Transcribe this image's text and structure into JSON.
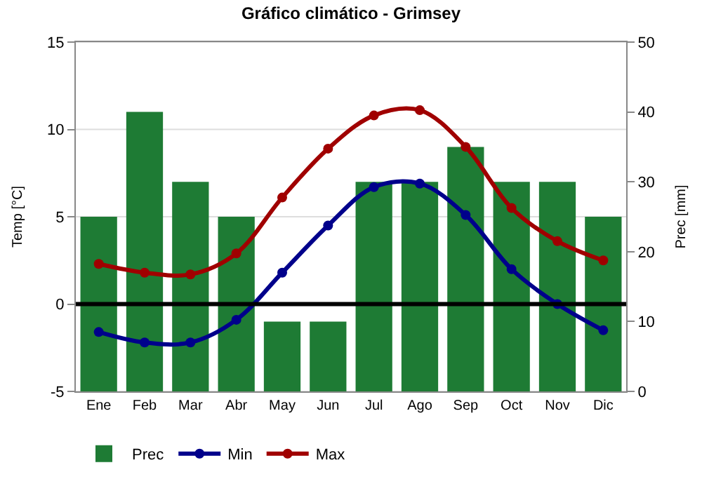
{
  "chart_data": {
    "type": "line",
    "title": "Gráfico climático - Grimsey",
    "ylabel": "Temp [°C]",
    "y2label": "Prec [mm]",
    "categories": [
      "Ene",
      "Feb",
      "Mar",
      "Abr",
      "May",
      "Jun",
      "Jul",
      "Ago",
      "Sep",
      "Oct",
      "Nov",
      "Dic"
    ],
    "series": [
      {
        "name": "Prec",
        "type": "bar",
        "axis": "y2",
        "color": "#1e7b34",
        "values": [
          25,
          40,
          30,
          25,
          10,
          10,
          30,
          30,
          35,
          30,
          30,
          25
        ]
      },
      {
        "name": "Min",
        "color": "#00008b",
        "values": [
          -1.6,
          -2.2,
          -2.2,
          -0.9,
          1.8,
          4.5,
          6.7,
          6.9,
          5.1,
          2.0,
          0.0,
          -1.5
        ]
      },
      {
        "name": "Max",
        "color": "#a00000",
        "values": [
          2.3,
          1.8,
          1.7,
          2.9,
          6.1,
          8.9,
          10.8,
          11.1,
          9.0,
          5.5,
          3.6,
          2.5
        ]
      }
    ],
    "ylim": [
      -5,
      15
    ],
    "yticks": [
      -5,
      0,
      5,
      10,
      15
    ],
    "y2lim": [
      0,
      50
    ],
    "y2ticks": [
      0,
      10,
      20,
      30,
      40,
      50
    ],
    "ref_lines": [
      {
        "axis": "y",
        "value": 0,
        "color": "#000000"
      }
    ],
    "grid": "y",
    "legend": "bottom",
    "marker": "circle",
    "line_style": "solid"
  }
}
